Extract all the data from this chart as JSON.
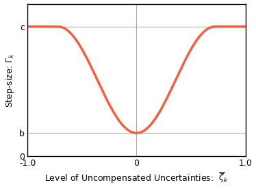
{
  "xlim": [
    -1.0,
    1.0
  ],
  "ylim": [
    0,
    1.0
  ],
  "c_val": 0.85,
  "b_val": 0.15,
  "line_color": "#f26040",
  "line_width": 2.5,
  "ytick_positions": [
    0,
    0.15,
    0.85
  ],
  "ytick_labels": [
    "0",
    "b",
    "c"
  ],
  "xtick_positions": [
    -1.0,
    0,
    1.0
  ],
  "xtick_labels": [
    "-1.0",
    "0",
    "1.0"
  ],
  "xlabel": "Level of Uncompensated Uncertainties:  $\\overline{\\zeta}_k$",
  "ylabel": "Step-size: $\\Gamma_k$",
  "grid_color": "#aaaaaa",
  "grid_linewidth": 0.8,
  "background_color": "#ffffff",
  "flatten_threshold": 0.72,
  "figwidth": 3.74,
  "figheight": 2.76,
  "dpi": 100
}
